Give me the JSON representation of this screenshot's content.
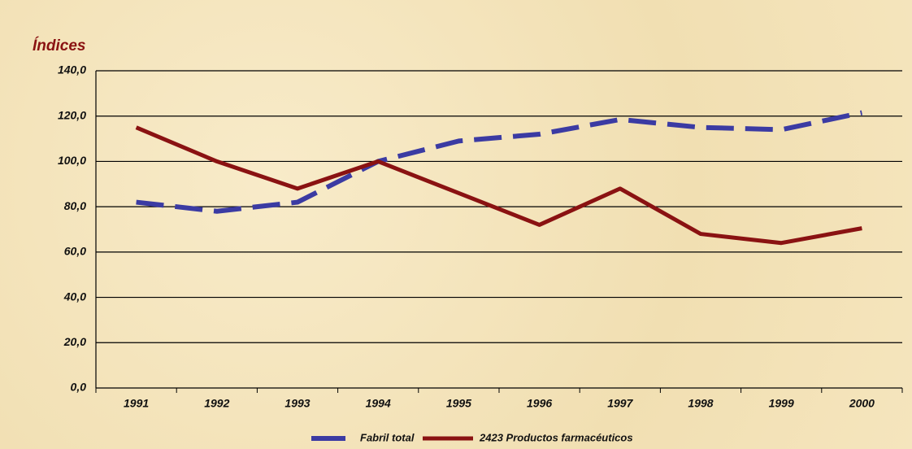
{
  "chart_data": {
    "type": "line",
    "ylabel": "Índices",
    "categories": [
      "1991",
      "1992",
      "1993",
      "1994",
      "1995",
      "1996",
      "1997",
      "1998",
      "1999",
      "2000"
    ],
    "series": [
      {
        "name": "Fabril total",
        "color": "#3b3ba3",
        "dash": true,
        "values": [
          82,
          78,
          82,
          100,
          109,
          112,
          118.5,
          115,
          114,
          121.5
        ]
      },
      {
        "name": "2423 Productos farmacéuticos",
        "color": "#8a1212",
        "dash": false,
        "values": [
          115,
          100,
          88,
          100,
          86,
          72,
          88,
          68,
          64,
          70.5
        ]
      }
    ],
    "ylim": [
      0,
      140
    ],
    "yticks": [
      {
        "value": 0,
        "label": "0,0"
      },
      {
        "value": 20,
        "label": "20,0"
      },
      {
        "value": 40,
        "label": "40,0"
      },
      {
        "value": 60,
        "label": "60,0"
      },
      {
        "value": 80,
        "label": "80,0"
      },
      {
        "value": 100,
        "label": "100,0"
      },
      {
        "value": 120,
        "label": "120,0"
      },
      {
        "value": 140,
        "label": "140,0"
      }
    ],
    "grid": true,
    "legend": "bottom"
  }
}
